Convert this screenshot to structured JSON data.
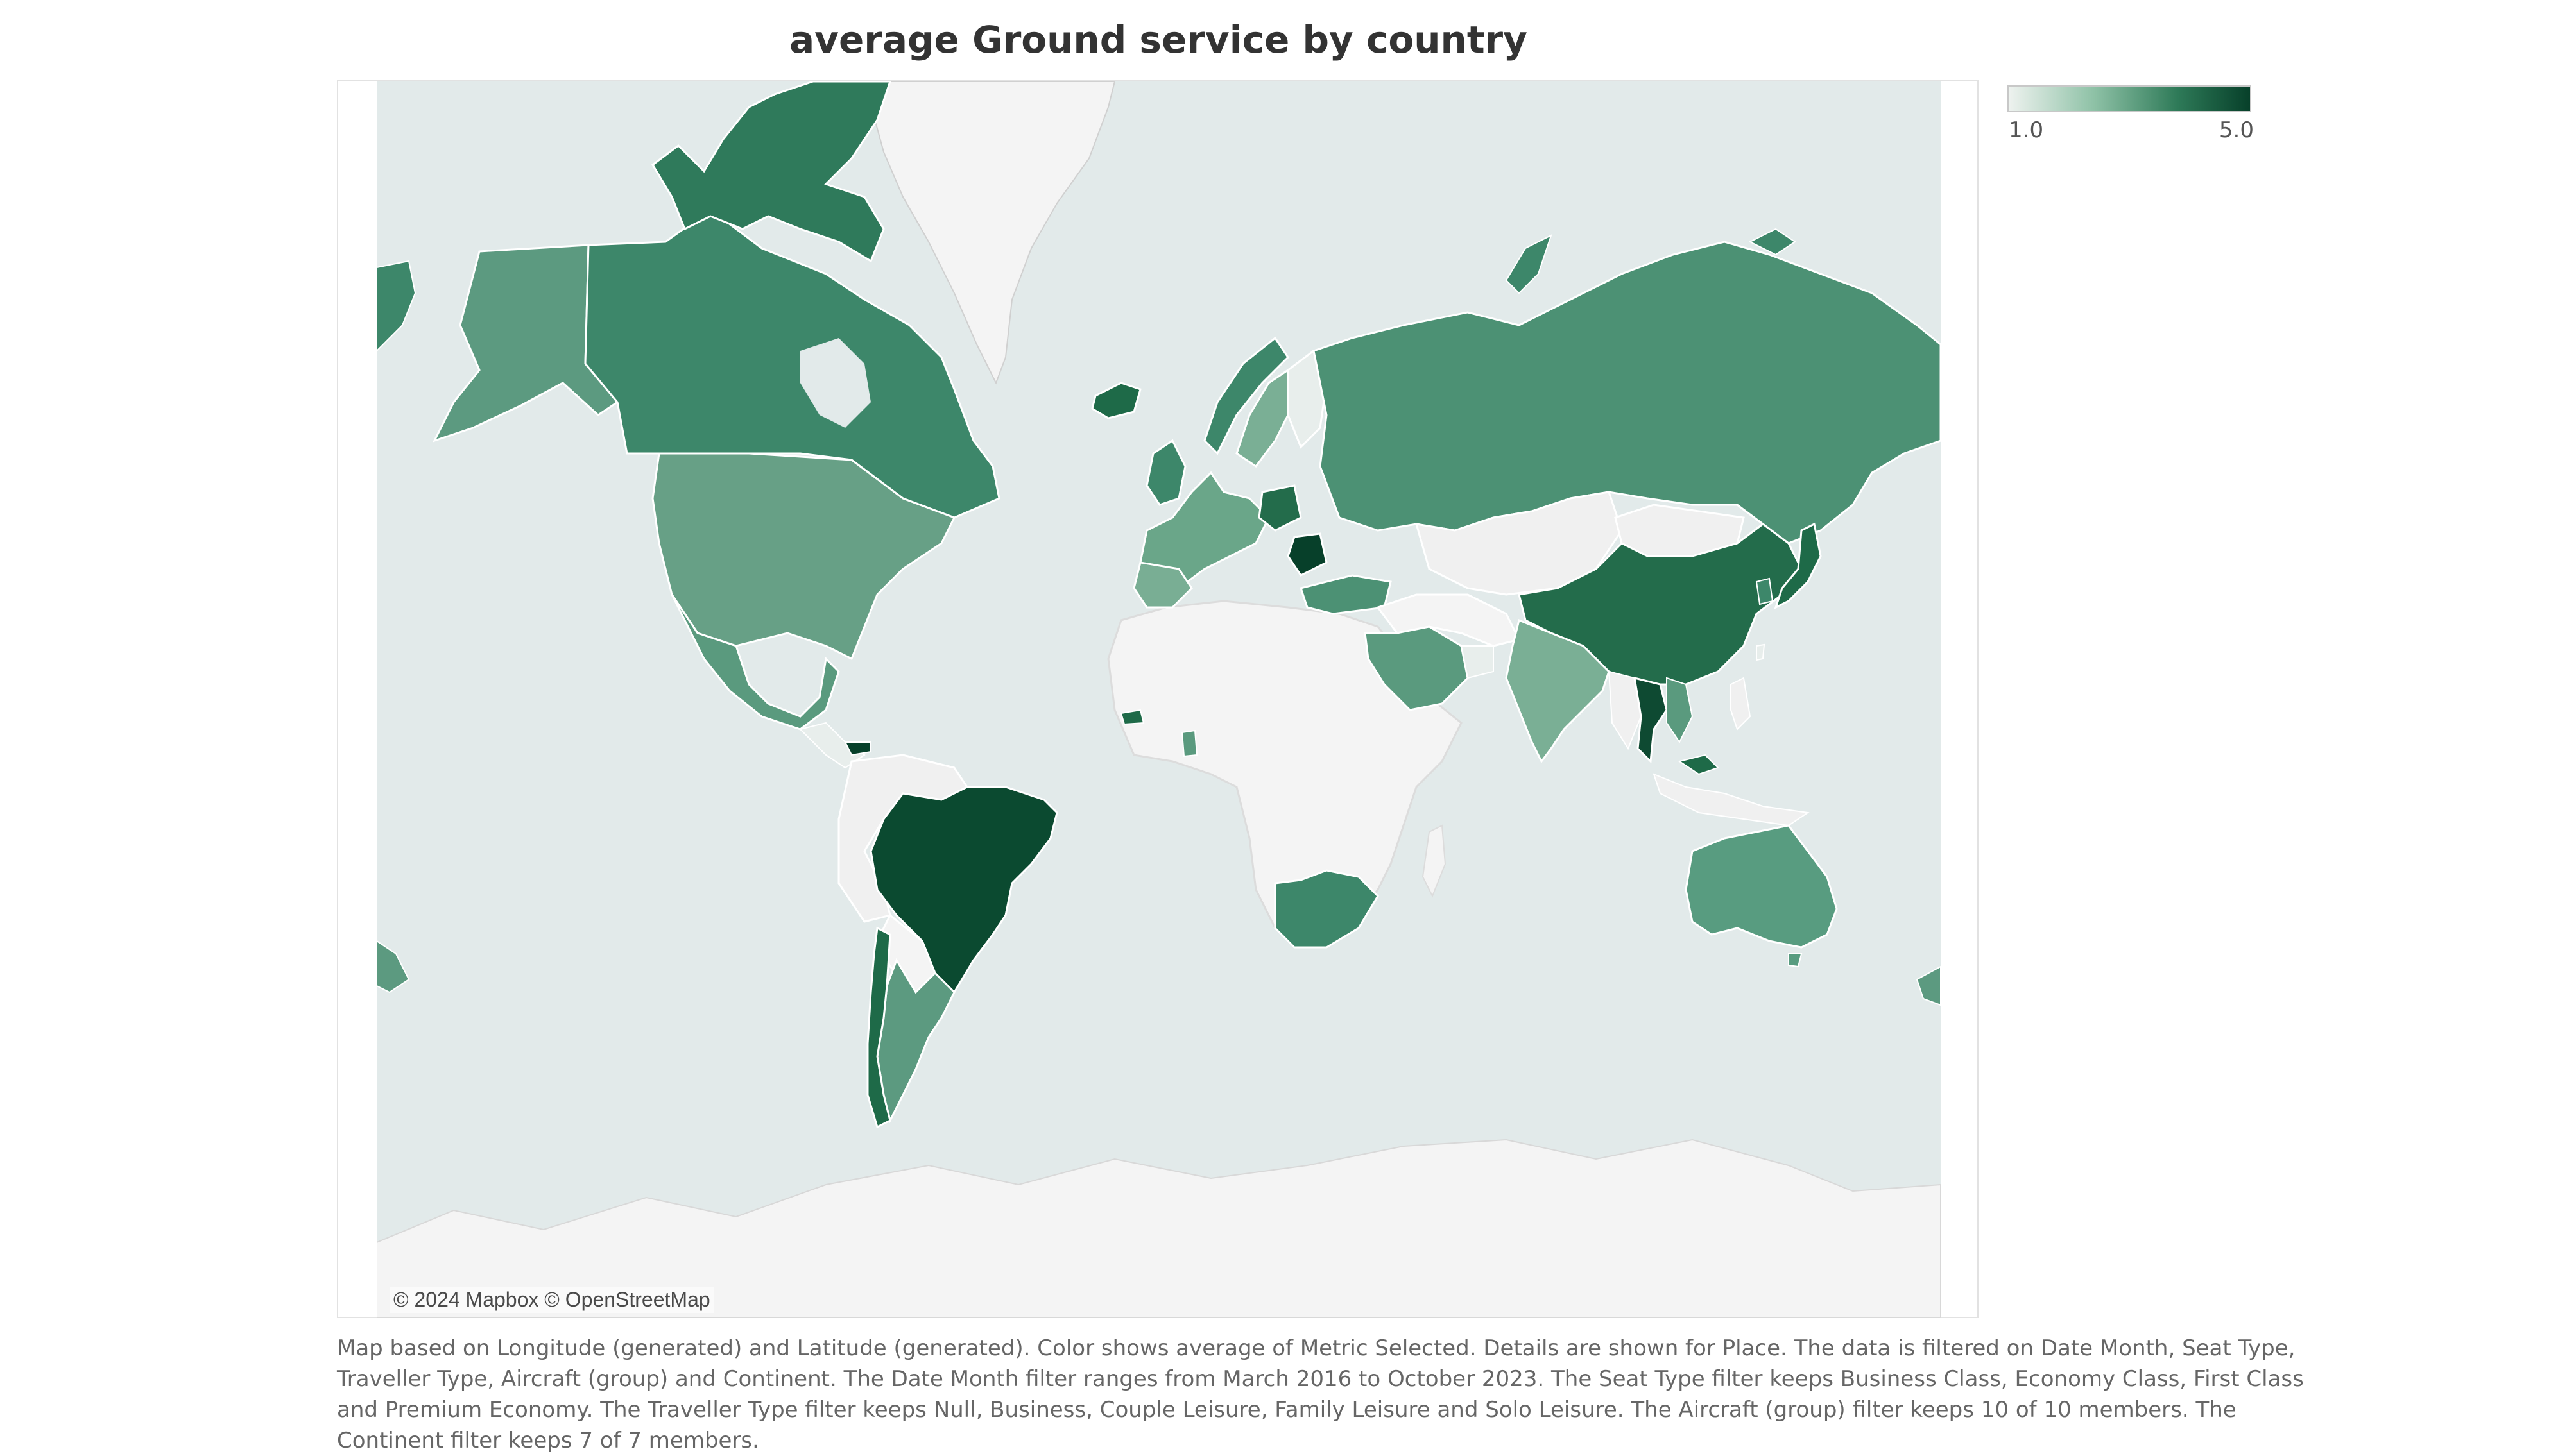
{
  "title": "average  Ground service by country",
  "legend": {
    "min_label": "1.0",
    "max_label": "5.0",
    "min_color": "#eef2ef",
    "max_color": "#07402a"
  },
  "map": {
    "attribution": "© 2024 Mapbox © OpenStreetMap",
    "ocean_color": "#e2eaea",
    "no_data_color": "#f4f4f4"
  },
  "caption": "Map based on Longitude (generated) and Latitude (generated).  Color shows average of Metric Selected.  Details are shown for Place. The data is filtered on Date Month, Seat Type, Traveller Type, Aircraft (group) and Continent. The Date Month filter ranges from March 2016 to October 2023. The Seat Type filter keeps Business Class, Economy Class, First Class and Premium Economy. The Traveller Type filter keeps Null, Business, Couple Leisure, Family Leisure and Solo Leisure. The Aircraft (group) filter keeps 10 of 10 members. The Continent filter keeps 7 of 7 members.",
  "countries": [
    {
      "name": "Canada",
      "color": "#3d876a"
    },
    {
      "name": "Alaska",
      "color": "#5c9a80"
    },
    {
      "name": "United States",
      "color": "#67a086"
    },
    {
      "name": "Mexico",
      "color": "#5a9a7e"
    },
    {
      "name": "Brazil",
      "color": "#0b4a30"
    },
    {
      "name": "Argentina",
      "color": "#5c9a80"
    },
    {
      "name": "Chile",
      "color": "#1e6a48"
    },
    {
      "name": "Greenland",
      "color": "#f4f4f4"
    },
    {
      "name": "Iceland",
      "color": "#1e6a48"
    },
    {
      "name": "Russia",
      "color": "#4c9174"
    },
    {
      "name": "China",
      "color": "#236c4b"
    },
    {
      "name": "Mongolia",
      "color": "#f0f0f0"
    },
    {
      "name": "India",
      "color": "#7aaf95"
    },
    {
      "name": "Saudi Arabia",
      "color": "#5a9a7e"
    },
    {
      "name": "Australia",
      "color": "#589c80"
    },
    {
      "name": "South Africa",
      "color": "#3d876a"
    },
    {
      "name": "Thailand",
      "color": "#0e4a32"
    },
    {
      "name": "Japan",
      "color": "#1e6a48"
    },
    {
      "name": "Africa",
      "color": "#f4f4f4"
    },
    {
      "name": "Antarctica",
      "color": "#f4f4f4"
    }
  ]
}
